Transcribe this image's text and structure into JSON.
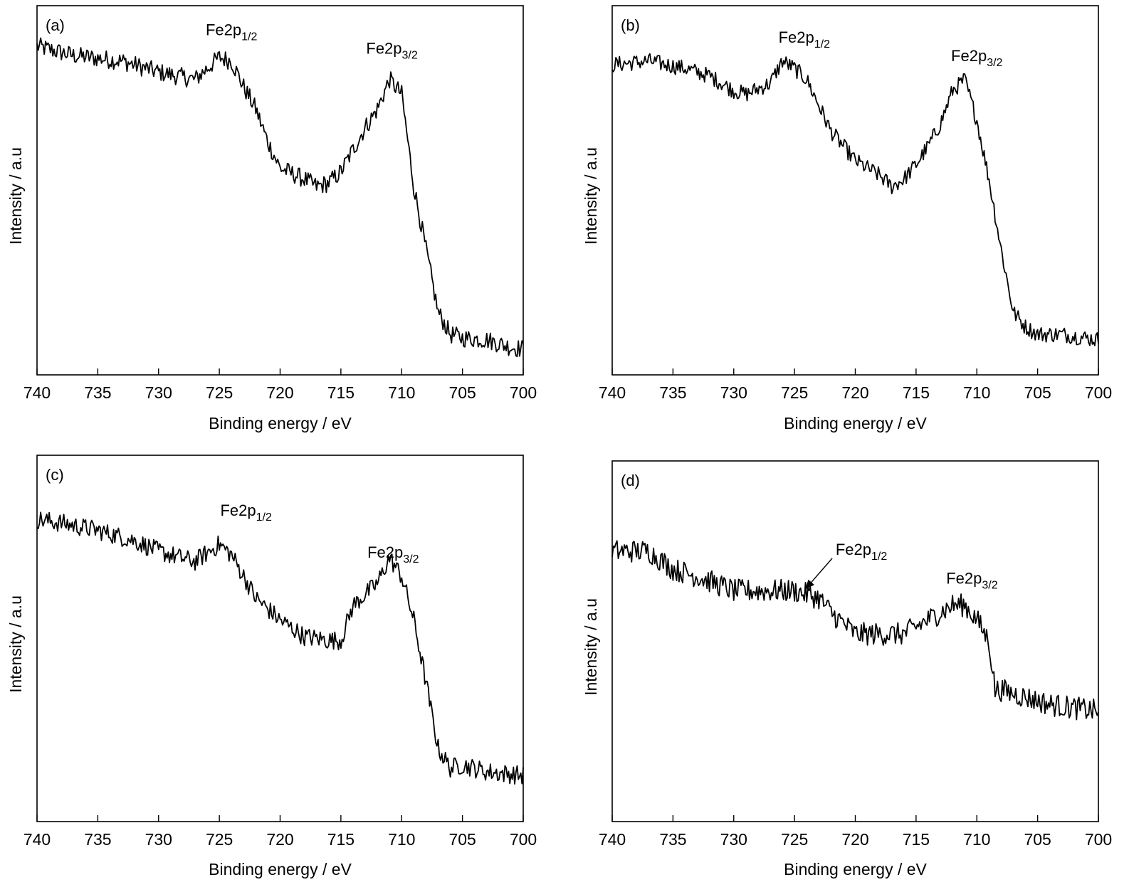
{
  "chart_data": [
    {
      "type": "line",
      "panel_label": "(a)",
      "xlabel": "Binding energy / eV",
      "ylabel": "Intensity / a.u",
      "xlim": [
        740,
        700
      ],
      "ylim": [
        0,
        100
      ],
      "xticks": [
        740,
        735,
        730,
        725,
        720,
        715,
        710,
        705,
        700
      ],
      "noise_amplitude": 2.5,
      "series": [
        {
          "name": "Fe2p",
          "x": [
            740,
            737,
            733,
            730,
            727,
            725,
            724,
            723,
            722,
            721,
            720,
            718,
            717,
            716,
            715,
            714,
            713,
            712,
            711,
            710,
            709,
            708,
            707,
            706,
            705,
            703,
            701,
            700
          ],
          "y": [
            89,
            86.5,
            85,
            82,
            80,
            86,
            85,
            78,
            72,
            63,
            56,
            53,
            51,
            52,
            55,
            61,
            67,
            72,
            80,
            76,
            51,
            34,
            17,
            11,
            10,
            9.5,
            7.5,
            7
          ]
        }
      ],
      "annotations": [
        {
          "main": "Fe2p",
          "sub": "1/2",
          "x": 724,
          "y": 92
        },
        {
          "main": "Fe2p",
          "sub": "3/2",
          "x": 710.8,
          "y": 87
        }
      ]
    },
    {
      "type": "line",
      "panel_label": "(b)",
      "xlabel": "Binding energy / eV",
      "ylabel": "Intensity / a.u",
      "xlim": [
        740,
        700
      ],
      "ylim": [
        0,
        100
      ],
      "xticks": [
        740,
        735,
        730,
        725,
        720,
        715,
        710,
        705,
        700
      ],
      "noise_amplitude": 2.2,
      "series": [
        {
          "name": "Fe2p",
          "x": [
            740,
            737,
            734,
            732,
            730,
            729,
            727,
            726,
            725,
            724,
            723,
            722,
            720,
            718,
            717,
            716,
            715,
            714,
            713,
            712,
            711,
            710,
            709,
            708,
            707,
            706,
            705,
            703,
            700
          ],
          "y": [
            84,
            85,
            83,
            81,
            77,
            76,
            79,
            85,
            83,
            80,
            73,
            66,
            58,
            54,
            51,
            53,
            57,
            62,
            68,
            77,
            80,
            69,
            53,
            34,
            17,
            13,
            11,
            11,
            9.5
          ]
        }
      ],
      "annotations": [
        {
          "main": "Fe2p",
          "sub": "1/2",
          "x": 724.2,
          "y": 90
        },
        {
          "main": "Fe2p",
          "sub": "3/2",
          "x": 710,
          "y": 85
        }
      ]
    },
    {
      "type": "line",
      "panel_label": "(c)",
      "xlabel": "Binding energy / eV",
      "ylabel": "Intensity / a.u",
      "xlim": [
        740,
        700
      ],
      "ylim": [
        0,
        100
      ],
      "xticks": [
        740,
        735,
        730,
        725,
        720,
        715,
        710,
        705,
        700
      ],
      "noise_amplitude": 2.6,
      "series": [
        {
          "name": "Fe2p",
          "x": [
            740,
            738,
            735,
            732,
            730,
            728,
            727,
            725,
            724,
            723,
            722,
            720,
            718,
            716,
            715,
            714,
            712,
            711,
            710,
            709,
            708,
            707,
            706,
            705,
            703,
            700
          ],
          "y": [
            82.5,
            81.5,
            79.5,
            76.7,
            73.8,
            71.8,
            71,
            75.7,
            72.8,
            67,
            61,
            55,
            50.5,
            49.5,
            49.5,
            59,
            65,
            72,
            67,
            55,
            38,
            20,
            14.6,
            15.5,
            13.6,
            12.6
          ]
        }
      ],
      "annotations": [
        {
          "main": "Fe2p",
          "sub": "1/2",
          "x": 722.8,
          "y": 83.5
        },
        {
          "main": "Fe2p",
          "sub": "3/2",
          "x": 710.7,
          "y": 72
        }
      ]
    },
    {
      "type": "line",
      "panel_label": "(d)",
      "xlabel": "Binding energy / eV",
      "ylabel": "Intensity / a.u",
      "xlim": [
        740,
        700
      ],
      "ylim": [
        0,
        100
      ],
      "xticks": [
        740,
        735,
        730,
        725,
        720,
        715,
        710,
        705,
        700
      ],
      "noise_amplitude": 3.2,
      "series": [
        {
          "name": "Fe2p",
          "x": [
            740,
            737,
            735,
            733,
            730,
            728,
            725,
            723,
            722,
            720,
            718,
            716,
            714,
            712,
            711,
            710,
            709,
            708.5,
            708,
            706,
            704,
            702,
            700
          ],
          "y": [
            75,
            75,
            70,
            68,
            64,
            64,
            64,
            62,
            58,
            52,
            52,
            52,
            56,
            60,
            60,
            56,
            50,
            36.5,
            36.5,
            34.5,
            32.5,
            31.5,
            30.6
          ]
        }
      ],
      "annotations": [
        {
          "main": "Fe2p",
          "sub": "1/2",
          "x": 719.5,
          "y": 74,
          "arrow": {
            "from": [
              721.9,
              73
            ],
            "to": [
              724.1,
              64.5
            ]
          }
        },
        {
          "main": "Fe2p",
          "sub": "3/2",
          "x": 710.4,
          "y": 66
        }
      ]
    }
  ]
}
